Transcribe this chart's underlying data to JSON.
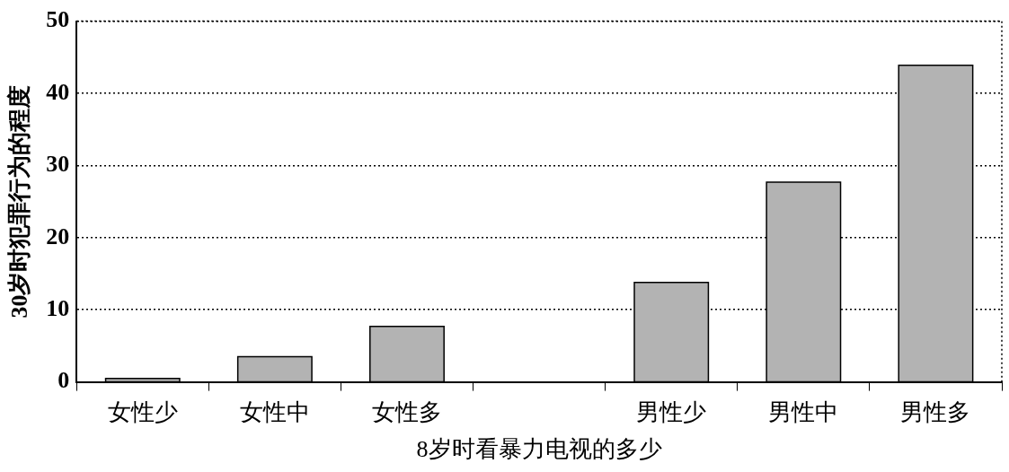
{
  "chart_data": {
    "type": "bar",
    "xlabel": "8岁时看暴力电视的多少",
    "ylabel": "30岁时犯罪行为的程度",
    "categories": [
      "女性少",
      "女性中",
      "女性多",
      null,
      "男性少",
      "男性中",
      "男性多"
    ],
    "values": [
      0.4,
      3.4,
      7.6,
      null,
      13.7,
      27.6,
      43.8
    ],
    "color": "#b3b3b3",
    "ylim": [
      0,
      50
    ],
    "yticks": [
      0,
      10,
      20,
      30,
      40,
      50
    ],
    "grid": "y",
    "legend": false
  }
}
